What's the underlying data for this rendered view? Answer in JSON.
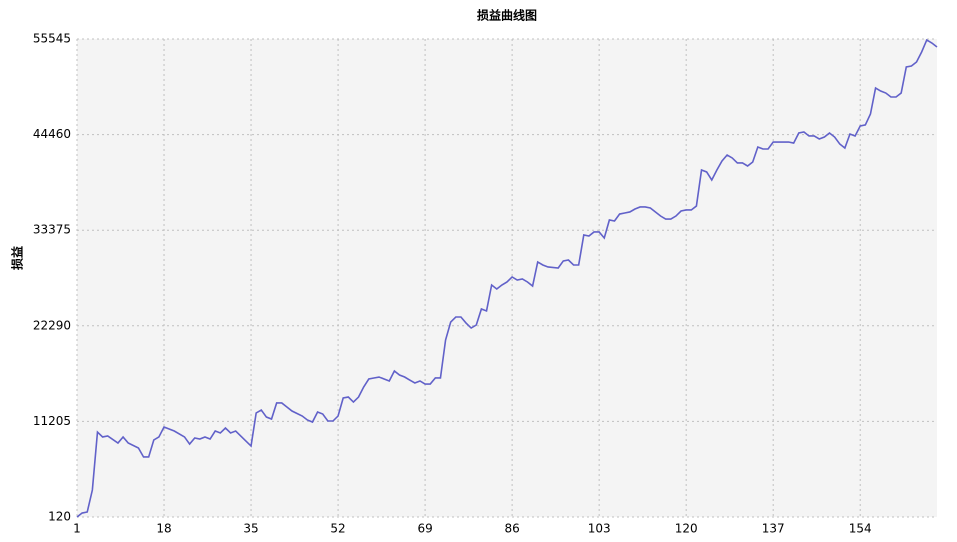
{
  "chart_data": {
    "type": "line",
    "title": "损益曲线图",
    "y_label": "损益",
    "x": [
      1,
      2,
      3,
      4,
      5,
      6,
      7,
      9,
      10,
      11,
      13,
      14,
      15,
      16,
      17,
      18,
      20,
      22,
      23,
      24,
      25,
      26,
      27,
      28,
      29,
      30,
      31,
      32,
      34,
      35,
      36,
      37,
      38,
      39,
      40,
      41,
      42,
      43,
      45,
      46,
      47,
      48,
      49,
      50,
      51,
      52,
      53,
      54,
      55,
      56,
      57,
      58,
      59,
      60,
      61,
      62,
      63,
      64,
      65,
      66,
      67,
      68,
      69,
      70,
      71,
      72,
      73,
      74,
      75,
      76,
      77,
      78,
      79,
      80,
      81,
      82,
      83,
      84,
      85,
      86,
      87,
      88,
      89,
      90,
      91,
      92,
      93,
      95,
      96,
      97,
      98,
      99,
      100,
      101,
      102,
      103,
      104,
      105,
      106,
      107,
      108,
      109,
      110,
      111,
      112,
      113,
      114,
      115,
      116,
      117,
      118,
      119,
      120,
      121,
      122,
      123,
      124,
      125,
      126,
      127,
      128,
      129,
      130,
      131,
      132,
      133,
      134,
      135,
      136,
      137,
      139,
      140,
      141,
      142,
      143,
      144,
      145,
      146,
      147,
      148,
      149,
      150,
      151,
      152,
      153,
      154,
      155,
      156,
      157,
      158,
      159,
      160,
      161,
      162,
      163,
      164,
      165,
      166,
      167,
      168,
      169
    ],
    "series": [
      {
        "name": "损益",
        "color": "#6161c9",
        "values": [
          120,
          580,
          700,
          3250,
          9970,
          9400,
          9510,
          8700,
          9400,
          8700,
          8120,
          7080,
          7080,
          9050,
          9400,
          10560,
          10090,
          9400,
          8580,
          9280,
          9160,
          9400,
          9160,
          10090,
          9860,
          10440,
          9860,
          10090,
          8930,
          8350,
          12180,
          12520,
          11710,
          11480,
          13340,
          13340,
          12870,
          12410,
          11830,
          11370,
          11130,
          12290,
          12060,
          11250,
          11250,
          11830,
          13920,
          14030,
          13450,
          14030,
          15190,
          16120,
          16240,
          16350,
          16120,
          15890,
          17050,
          16580,
          16350,
          16000,
          15660,
          15890,
          15540,
          15540,
          16240,
          16240,
          20640,
          22730,
          23310,
          23310,
          22610,
          22030,
          22380,
          24240,
          24010,
          27020,
          26560,
          27020,
          27370,
          27950,
          27600,
          27720,
          27370,
          26900,
          29690,
          29340,
          29110,
          28990,
          29810,
          29920,
          29340,
          29340,
          32820,
          32700,
          33170,
          33170,
          32470,
          34560,
          34440,
          35250,
          35370,
          35490,
          35830,
          36070,
          36070,
          35950,
          35490,
          35020,
          34670,
          34670,
          35020,
          35600,
          35720,
          35720,
          36180,
          40360,
          40130,
          39200,
          40360,
          41400,
          42090,
          41750,
          41170,
          41170,
          40820,
          41280,
          43020,
          42790,
          42790,
          43600,
          43600,
          43600,
          43480,
          44650,
          44760,
          44300,
          44300,
          43950,
          44180,
          44650,
          44180,
          43370,
          42900,
          44530,
          44300,
          45460,
          45580,
          46850,
          49860,
          49510,
          49280,
          48820,
          48820,
          49280,
          52300,
          52410,
          52880,
          54040,
          55430,
          55080,
          54620
        ]
      }
    ],
    "xlim": [
      1,
      169
    ],
    "xticks": [
      1,
      18,
      35,
      52,
      69,
      86,
      103,
      120,
      137,
      154
    ],
    "ylim": [
      120,
      55545
    ],
    "yticks": [
      120,
      11205,
      22290,
      33375,
      44460,
      55545
    ],
    "grid": true
  }
}
